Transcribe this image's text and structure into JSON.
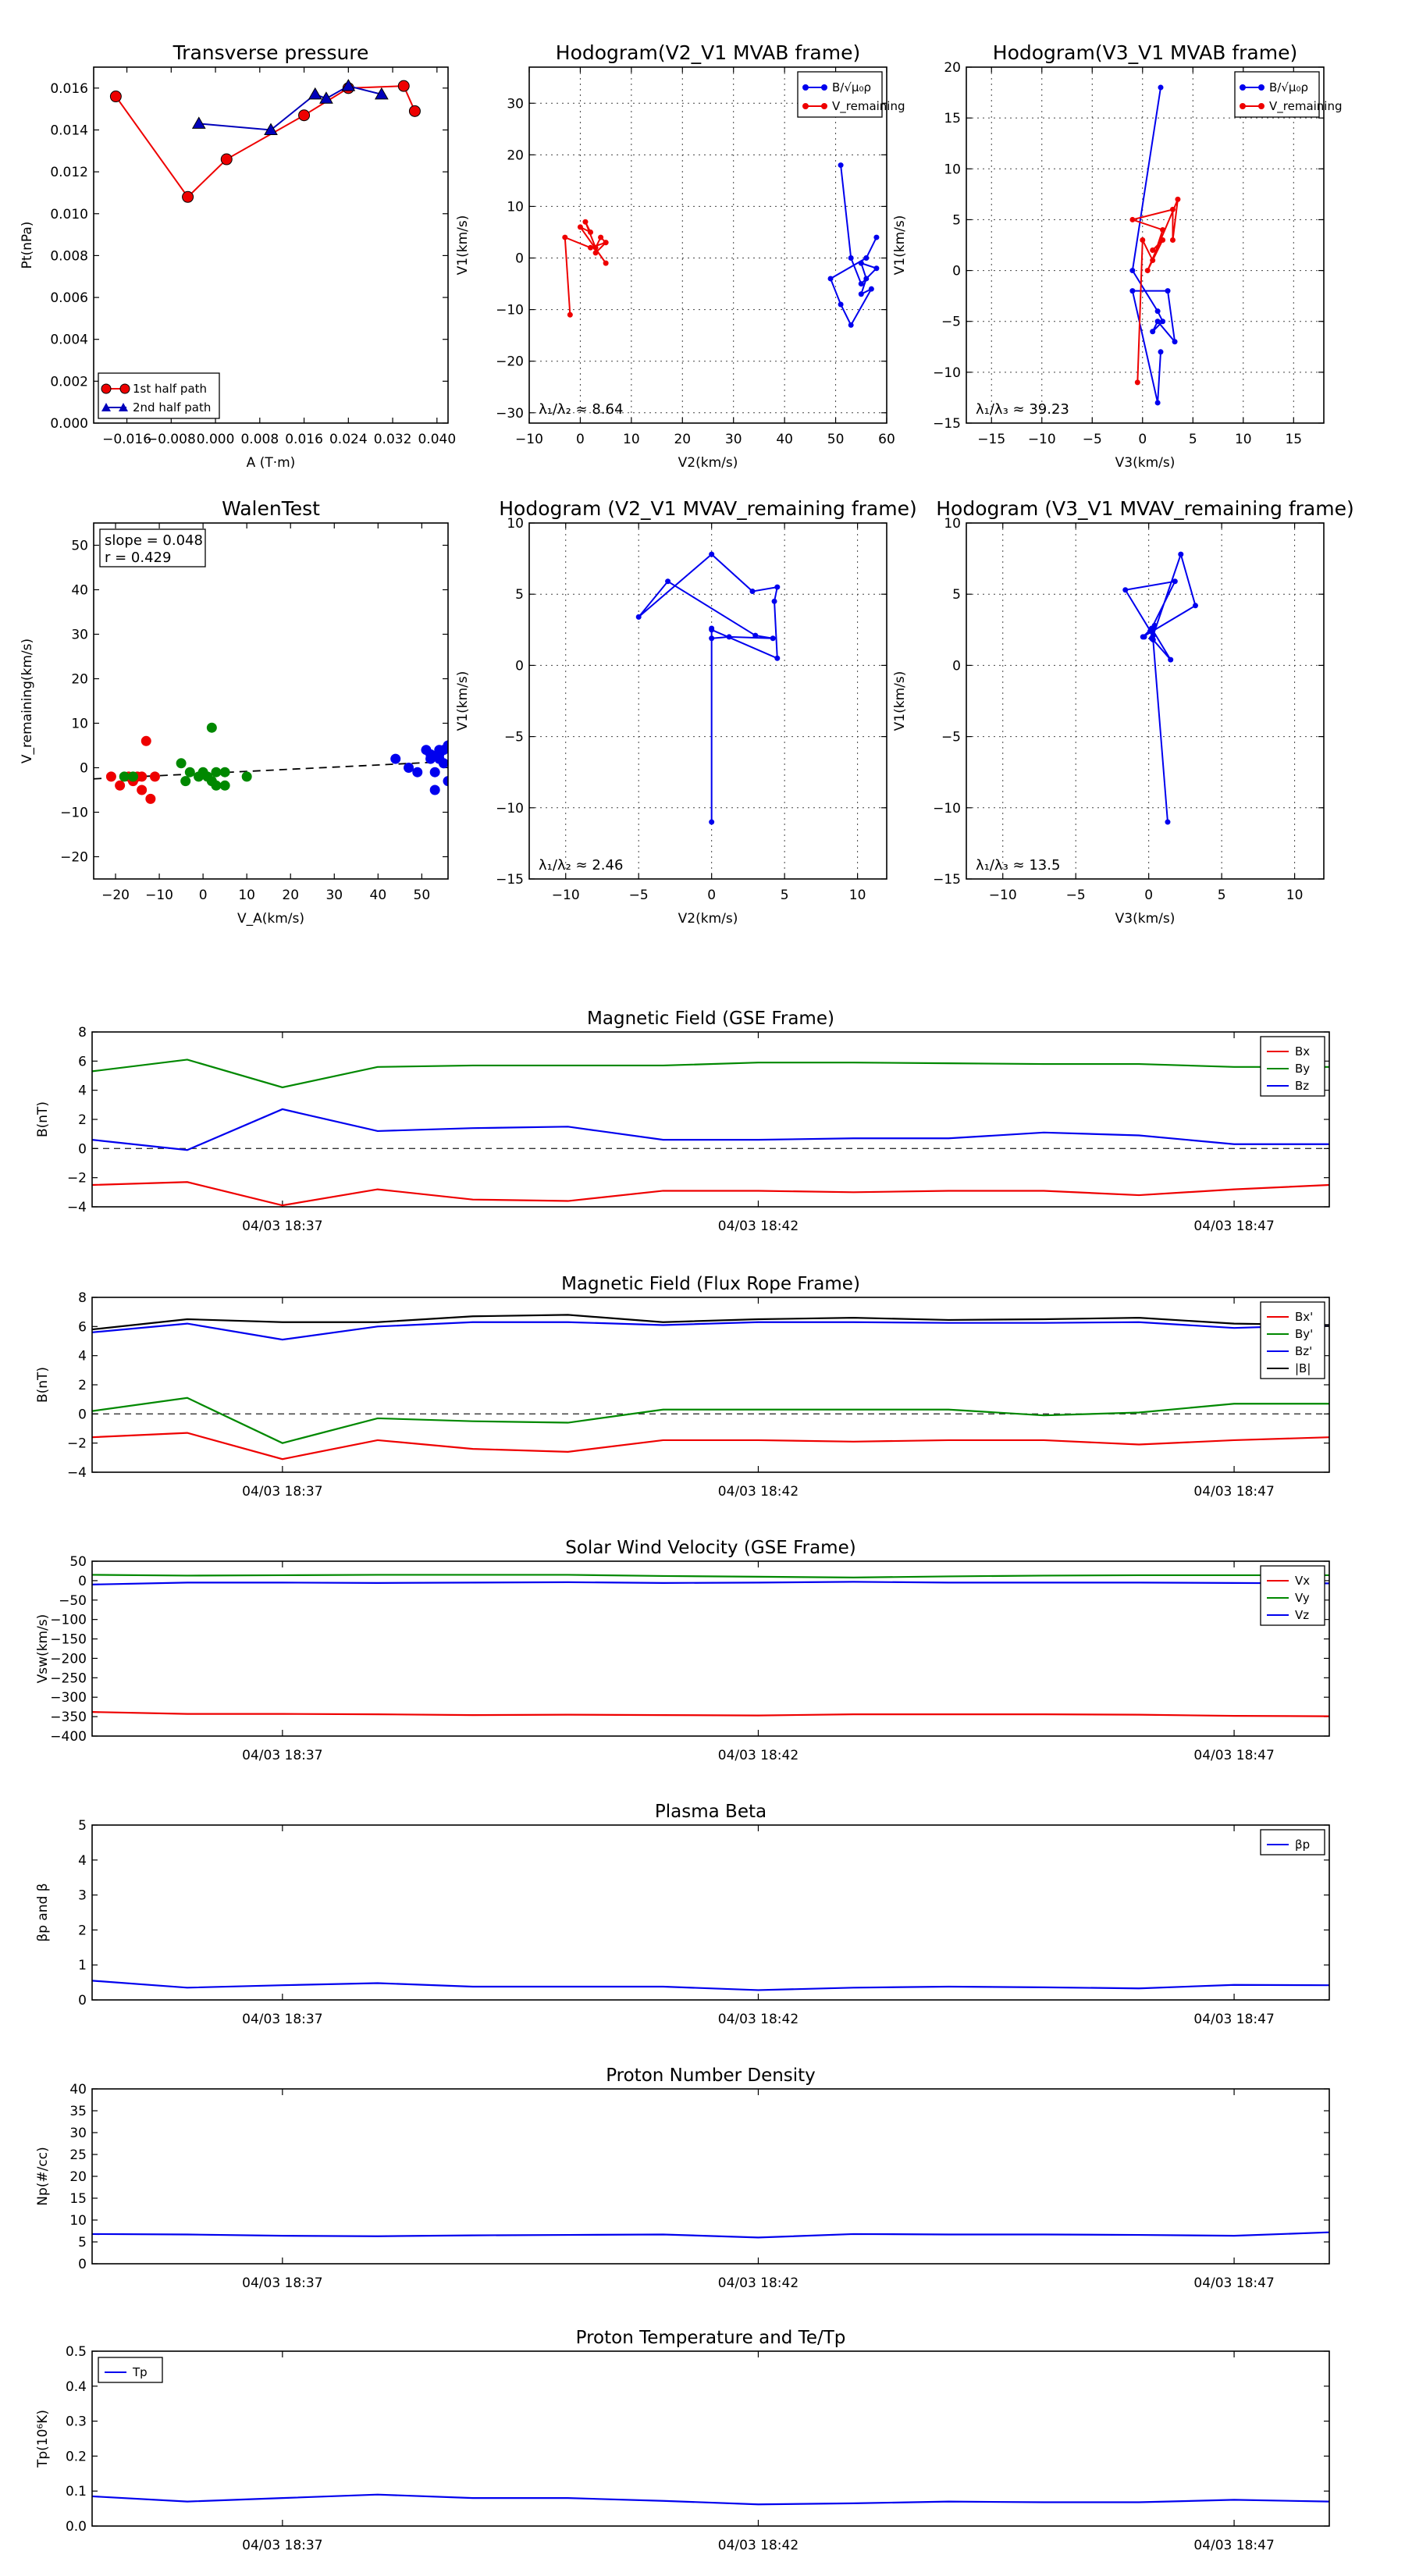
{
  "chart_data": [
    {
      "id": "transverse",
      "type": "scatter",
      "title": "Transverse pressure",
      "xlabel": "A (T·m)",
      "ylabel": "Pt(nPa)",
      "xlim": [
        -0.022,
        0.042
      ],
      "ylim": [
        0,
        0.017
      ],
      "xticks": [
        -0.016,
        -0.008,
        0.0,
        0.008,
        0.016,
        0.024,
        0.032,
        0.04
      ],
      "xticklabels": [
        "−0.016",
        "−0.008",
        "0.000",
        "0.008",
        "0.016",
        "0.024",
        "0.032",
        "0.040"
      ],
      "yticks": [
        0,
        0.002,
        0.004,
        0.006,
        0.008,
        0.01,
        0.012,
        0.014,
        0.016
      ],
      "yticklabels": [
        "0.000",
        "0.002",
        "0.004",
        "0.006",
        "0.008",
        "0.010",
        "0.012",
        "0.014",
        "0.016"
      ],
      "grid": false,
      "legend": "lower-left",
      "series": [
        {
          "name": "1st half path",
          "color": "#ee0000",
          "marker": "circle",
          "x": [
            0.036,
            0.034,
            0.024,
            0.016,
            0.002,
            -0.005,
            -0.018
          ],
          "y": [
            0.0149,
            0.0161,
            0.016,
            0.0147,
            0.0126,
            0.0108,
            0.0156
          ]
        },
        {
          "name": "2nd half path",
          "color": "#0000bb",
          "marker": "triangle",
          "x": [
            -0.003,
            0.01,
            0.018,
            0.02,
            0.024,
            0.03
          ],
          "y": [
            0.0143,
            0.014,
            0.0157,
            0.0155,
            0.0161,
            0.0157
          ]
        }
      ]
    },
    {
      "id": "hodo1",
      "type": "line",
      "title": "Hodogram(V2_V1 MVAB frame)",
      "xlabel": "V2(km/s)",
      "ylabel": "V1(km/s)",
      "xlim": [
        -10,
        60
      ],
      "ylim": [
        -32,
        37
      ],
      "xticks": [
        -10,
        0,
        10,
        20,
        30,
        40,
        50,
        60
      ],
      "xticklabels": [
        "−10",
        "0",
        "10",
        "20",
        "30",
        "40",
        "50",
        "60"
      ],
      "yticks": [
        -30,
        -20,
        -10,
        0,
        10,
        20,
        30
      ],
      "yticklabels": [
        "−30",
        "−20",
        "−10",
        "0",
        "10",
        "20",
        "30"
      ],
      "grid": true,
      "legend": "top-right",
      "annotation": "λ₁/λ₂ ≈ 8.64",
      "series": [
        {
          "name": "B/√μ₀ρ",
          "color": "#0000ee",
          "x": [
            51,
            53,
            55,
            58,
            55,
            56,
            55,
            57,
            53,
            51,
            49,
            56,
            58
          ],
          "y": [
            18,
            0,
            -5,
            -2,
            -1,
            -4,
            -7,
            -6,
            -13,
            -9,
            -4,
            0,
            4
          ]
        },
        {
          "name": "V_remaining",
          "color": "#ee0000",
          "x": [
            -2,
            -3,
            2,
            5,
            3,
            5,
            4,
            3,
            1,
            2,
            0,
            5
          ],
          "y": [
            -11,
            4,
            2,
            3,
            1,
            3,
            4,
            2,
            7,
            5,
            6,
            -1
          ]
        }
      ]
    },
    {
      "id": "hodo2",
      "type": "line",
      "title": "Hodogram(V3_V1 MVAB frame)",
      "xlabel": "V3(km/s)",
      "ylabel": "V1(km/s)",
      "xlim": [
        -17.5,
        18
      ],
      "ylim": [
        -15,
        20
      ],
      "xticks": [
        -15,
        -10,
        -5,
        0,
        5,
        10,
        15
      ],
      "xticklabels": [
        "−15",
        "−10",
        "−5",
        "0",
        "5",
        "10",
        "15"
      ],
      "yticks": [
        -15,
        -10,
        -5,
        0,
        5,
        10,
        15,
        20
      ],
      "yticklabels": [
        "−15",
        "−10",
        "−5",
        "0",
        "5",
        "10",
        "15",
        "20"
      ],
      "grid": true,
      "legend": "top-right",
      "annotation": "λ₁/λ₃ ≈ 39.23",
      "series": [
        {
          "name": "B/√μ₀ρ",
          "color": "#0000ee",
          "x": [
            1.8,
            -1,
            1.5,
            2,
            1,
            1.5,
            3.2,
            2.5,
            -1,
            1.5,
            1.8
          ],
          "y": [
            18,
            0,
            -4,
            -5,
            -6,
            -5,
            -7,
            -2,
            -2,
            -13,
            -8
          ]
        },
        {
          "name": "V_remaining",
          "color": "#ee0000",
          "x": [
            -0.5,
            0,
            1,
            2,
            -1,
            3,
            3,
            3.5,
            0.5,
            2,
            1
          ],
          "y": [
            -11,
            3,
            1,
            4,
            5,
            6,
            3,
            7,
            0,
            3,
            2
          ]
        }
      ]
    },
    {
      "id": "walen",
      "type": "scatter",
      "title": "WalenTest",
      "xlabel": "V_A(km/s)",
      "ylabel": "V_remaining(km/s)",
      "xlim": [
        -25,
        56
      ],
      "ylim": [
        -25,
        55
      ],
      "xticks": [
        -20,
        -10,
        0,
        10,
        20,
        30,
        40,
        50
      ],
      "xticklabels": [
        "−20",
        "−10",
        "0",
        "10",
        "20",
        "30",
        "40",
        "50"
      ],
      "yticks": [
        -20,
        -10,
        0,
        10,
        20,
        30,
        40,
        50
      ],
      "yticklabels": [
        "−20",
        "−10",
        "0",
        "10",
        "20",
        "30",
        "40",
        "50"
      ],
      "grid": false,
      "annotation": [
        "slope = 0.048",
        "r = 0.429"
      ],
      "fit": {
        "slope": 0.048,
        "intercept": -1.3
      },
      "series": [
        {
          "color": "#ee0000",
          "x": [
            -21,
            -19,
            -17,
            -16,
            -15,
            -14,
            -14,
            -13,
            -12,
            -11
          ],
          "y": [
            -2,
            -4,
            -2,
            -3,
            -2,
            -5,
            -2,
            6,
            -7,
            -2
          ]
        },
        {
          "color": "#008800",
          "x": [
            -18,
            -16,
            -5,
            -4,
            -3,
            -1,
            0,
            1,
            2,
            2,
            3,
            3,
            5,
            5,
            10
          ],
          "y": [
            -2,
            -2,
            1,
            -3,
            -1,
            -2,
            -1,
            -2,
            9,
            -3,
            -4,
            -1,
            -4,
            -1,
            -2
          ]
        },
        {
          "color": "#0000ee",
          "x": [
            44,
            47,
            49,
            51,
            52,
            52,
            53,
            53,
            54,
            54,
            55,
            55,
            54,
            56,
            56
          ],
          "y": [
            2,
            0,
            -1,
            4,
            3,
            2,
            -1,
            -5,
            3,
            4,
            4,
            1,
            2,
            -3,
            5
          ]
        }
      ]
    },
    {
      "id": "hodo3",
      "type": "line",
      "title": "Hodogram (V2_V1 MVAV_remaining frame)",
      "xlabel": "V2(km/s)",
      "ylabel": "V1(km/s)",
      "xlim": [
        -12.5,
        12
      ],
      "ylim": [
        -15,
        10
      ],
      "xticks": [
        -10,
        -5,
        0,
        5,
        10
      ],
      "xticklabels": [
        "−10",
        "−5",
        "0",
        "5",
        "10"
      ],
      "yticks": [
        -15,
        -10,
        -5,
        0,
        5,
        10
      ],
      "yticklabels": [
        "−15",
        "−10",
        "−5",
        "0",
        "5",
        "10"
      ],
      "grid": true,
      "annotation": "λ₁/λ₂ ≈ 2.46",
      "series": [
        {
          "color": "#0000ee",
          "x": [
            0,
            0,
            4.5,
            4.3,
            4.5,
            2.8,
            0,
            -5,
            -3,
            3,
            4.2,
            1.2,
            0,
            0
          ],
          "y": [
            -11,
            2.5,
            0.5,
            4.5,
            5.5,
            5.2,
            7.8,
            3.4,
            5.9,
            2.1,
            1.9,
            2.0,
            1.9,
            2.6
          ]
        }
      ]
    },
    {
      "id": "hodo4",
      "type": "line",
      "title": "Hodogram (V3_V1 MVAV_remaining frame)",
      "xlabel": "V3(km/s)",
      "ylabel": "V1(km/s)",
      "xlim": [
        -12.5,
        12
      ],
      "ylim": [
        -15,
        10
      ],
      "xticks": [
        -10,
        -5,
        0,
        5,
        10
      ],
      "xticklabels": [
        "−10",
        "−5",
        "0",
        "5",
        "10"
      ],
      "yticks": [
        -15,
        -10,
        -5,
        0,
        5,
        10
      ],
      "yticklabels": [
        "−15",
        "−10",
        "−5",
        "0",
        "5",
        "10"
      ],
      "grid": true,
      "annotation": "λ₁/λ₃ ≈ 13.5",
      "series": [
        {
          "color": "#0000ee",
          "x": [
            1.3,
            0.3,
            1.5,
            0.2,
            -0.4,
            3.2,
            2.2,
            0.3,
            -1.6,
            1.8,
            0.1,
            -0.3,
            0.4,
            0.2
          ],
          "y": [
            -11,
            1.8,
            0.4,
            2.6,
            2.0,
            4.2,
            7.8,
            2.1,
            5.3,
            5.9,
            2.4,
            2.0,
            2.8,
            1.9
          ]
        }
      ]
    },
    {
      "id": "bgse",
      "type": "line",
      "title": "Magnetic Field (GSE Frame)",
      "ylabel": "B(nT)",
      "ylim": [
        -4,
        8
      ],
      "yticks": [
        -4,
        -2,
        0,
        2,
        4,
        6,
        8
      ],
      "yticklabels": [
        "−4",
        "−2",
        "0",
        "2",
        "4",
        "6",
        "8"
      ],
      "xticks_at": [
        2,
        7,
        12
      ],
      "xticklabels": [
        "04/03 18:37",
        "04/03 18:42",
        "04/03 18:47"
      ],
      "x_count": 14,
      "zero_line": true,
      "legend": "top-right",
      "series": [
        {
          "name": "Bx",
          "color": "#ee0000",
          "values": [
            -2.5,
            -2.3,
            -3.9,
            -2.8,
            -3.5,
            -3.6,
            -2.9,
            -2.9,
            -3.0,
            -2.9,
            -2.9,
            -3.2,
            -2.8,
            -2.5
          ]
        },
        {
          "name": "By",
          "color": "#008800",
          "values": [
            5.3,
            6.1,
            4.2,
            5.6,
            5.7,
            5.7,
            5.7,
            5.9,
            5.9,
            5.85,
            5.8,
            5.8,
            5.6,
            5.6
          ]
        },
        {
          "name": "Bz",
          "color": "#0000ee",
          "values": [
            0.6,
            -0.1,
            2.7,
            1.2,
            1.4,
            1.5,
            0.6,
            0.6,
            0.7,
            0.7,
            1.1,
            0.9,
            0.3,
            0.3
          ]
        }
      ]
    },
    {
      "id": "bfr",
      "type": "line",
      "title": "Magnetic Field (Flux Rope Frame)",
      "ylabel": "B(nT)",
      "ylim": [
        -4,
        8
      ],
      "yticks": [
        -4,
        -2,
        0,
        2,
        4,
        6,
        8
      ],
      "yticklabels": [
        "−4",
        "−2",
        "0",
        "2",
        "4",
        "6",
        "8"
      ],
      "xticks_at": [
        2,
        7,
        12
      ],
      "xticklabels": [
        "04/03 18:37",
        "04/03 18:42",
        "04/03 18:47"
      ],
      "x_count": 14,
      "zero_line": true,
      "legend": "top-right",
      "series": [
        {
          "name": "Bx'",
          "color": "#ee0000",
          "values": [
            -1.6,
            -1.3,
            -3.1,
            -1.8,
            -2.4,
            -2.6,
            -1.8,
            -1.8,
            -1.9,
            -1.8,
            -1.8,
            -2.1,
            -1.8,
            -1.6
          ]
        },
        {
          "name": "By'",
          "color": "#008800",
          "values": [
            0.2,
            1.1,
            -2.0,
            -0.3,
            -0.5,
            -0.6,
            0.3,
            0.3,
            0.3,
            0.3,
            -0.1,
            0.1,
            0.7,
            0.7
          ]
        },
        {
          "name": "Bz'",
          "color": "#0000ee",
          "values": [
            5.6,
            6.2,
            5.1,
            6.0,
            6.3,
            6.3,
            6.1,
            6.3,
            6.3,
            6.25,
            6.25,
            6.3,
            5.9,
            6.1
          ]
        },
        {
          "name": "|B|",
          "color": "#000000",
          "values": [
            5.8,
            6.5,
            6.3,
            6.3,
            6.7,
            6.8,
            6.3,
            6.5,
            6.6,
            6.45,
            6.5,
            6.6,
            6.2,
            6.1
          ]
        }
      ]
    },
    {
      "id": "vsw",
      "type": "line",
      "title": "Solar Wind Velocity (GSE Frame)",
      "ylabel": "Vsw(km/s)",
      "ylim": [
        -400,
        50
      ],
      "yticks": [
        -400,
        -350,
        -300,
        -250,
        -200,
        -150,
        -100,
        -50,
        0,
        50
      ],
      "yticklabels": [
        "−400",
        "−350",
        "−300",
        "−250",
        "−200",
        "−150",
        "−100",
        "−50",
        "0",
        "50"
      ],
      "xticks_at": [
        2,
        7,
        12
      ],
      "xticklabels": [
        "04/03 18:37",
        "04/03 18:42",
        "04/03 18:47"
      ],
      "x_count": 14,
      "zero_line": false,
      "legend": "top-right",
      "series": [
        {
          "name": "Vx",
          "color": "#ee0000",
          "values": [
            -338,
            -343,
            -343,
            -344,
            -346,
            -345,
            -346,
            -347,
            -344,
            -344,
            -344,
            -345,
            -348,
            -349
          ]
        },
        {
          "name": "Vy",
          "color": "#008800",
          "values": [
            15,
            13,
            14,
            15,
            15,
            15,
            12,
            10,
            8,
            11,
            13,
            14,
            14,
            14
          ]
        },
        {
          "name": "Vz",
          "color": "#0000ee",
          "values": [
            -10,
            -5,
            -5,
            -6,
            -5,
            -4,
            -6,
            -5,
            -3,
            -5,
            -5,
            -5,
            -6,
            -7
          ]
        }
      ]
    },
    {
      "id": "beta",
      "type": "line",
      "title": "Plasma Beta",
      "ylabel": "βp and β",
      "ylim": [
        0,
        5
      ],
      "yticks": [
        0,
        1,
        2,
        3,
        4,
        5
      ],
      "yticklabels": [
        "0",
        "1",
        "2",
        "3",
        "4",
        "5"
      ],
      "xticks_at": [
        2,
        7,
        12
      ],
      "xticklabels": [
        "04/03 18:37",
        "04/03 18:42",
        "04/03 18:47"
      ],
      "x_count": 14,
      "zero_line": false,
      "legend": "top-right",
      "series": [
        {
          "name": "βp",
          "color": "#0000ee",
          "values": [
            0.55,
            0.35,
            0.42,
            0.48,
            0.38,
            0.38,
            0.38,
            0.28,
            0.35,
            0.38,
            0.36,
            0.33,
            0.43,
            0.42
          ]
        }
      ]
    },
    {
      "id": "np",
      "type": "line",
      "title": "Proton Number Density",
      "ylabel": "Np(#/cc)",
      "ylim": [
        0,
        40
      ],
      "yticks": [
        0,
        5,
        10,
        15,
        20,
        25,
        30,
        35,
        40
      ],
      "yticklabels": [
        "0",
        "5",
        "10",
        "15",
        "20",
        "25",
        "30",
        "35",
        "40"
      ],
      "xticks_at": [
        2,
        7,
        12
      ],
      "xticklabels": [
        "04/03 18:37",
        "04/03 18:42",
        "04/03 18:47"
      ],
      "x_count": 14,
      "zero_line": false,
      "series": [
        {
          "color": "#0000ee",
          "values": [
            6.8,
            6.7,
            6.4,
            6.3,
            6.5,
            6.6,
            6.7,
            6.0,
            6.8,
            6.7,
            6.7,
            6.6,
            6.4,
            7.2
          ]
        }
      ]
    },
    {
      "id": "tp",
      "type": "line",
      "title": "Proton Temperature and Te/Tp",
      "ylabel": "Tp(10⁶K)",
      "ylim": [
        0,
        0.5
      ],
      "yticks": [
        0,
        0.1,
        0.2,
        0.3,
        0.4,
        0.5
      ],
      "yticklabels": [
        "0.0",
        "0.1",
        "0.2",
        "0.3",
        "0.4",
        "0.5"
      ],
      "xticks_at": [
        2,
        7,
        12
      ],
      "xticklabels": [
        "04/03 18:37",
        "04/03 18:42",
        "04/03 18:47"
      ],
      "x_count": 14,
      "zero_line": false,
      "legend": "top-left",
      "series": [
        {
          "name": "Tp",
          "color": "#0000ee",
          "values": [
            0.085,
            0.07,
            0.08,
            0.09,
            0.08,
            0.08,
            0.072,
            0.062,
            0.065,
            0.07,
            0.068,
            0.068,
            0.075,
            0.07
          ]
        }
      ]
    }
  ]
}
